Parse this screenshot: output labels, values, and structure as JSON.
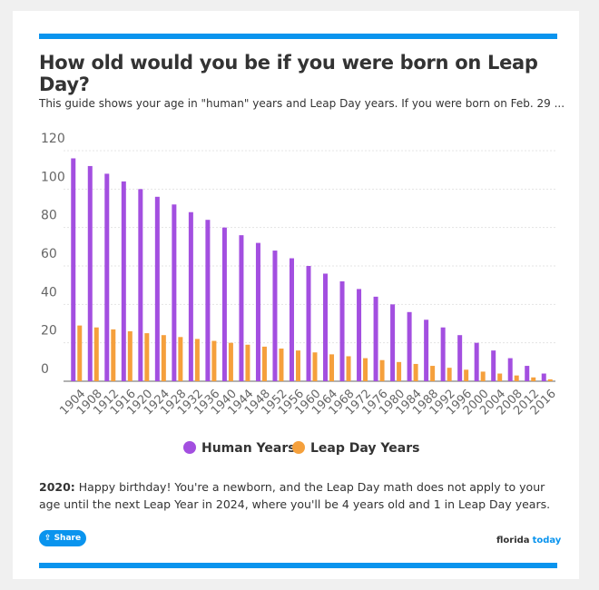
{
  "header": {
    "title": "How old would you be if you were born on Leap Day?",
    "subtitle": "This guide shows your age in \"human\" years and Leap Day years. If you were born on Feb. 29 ..."
  },
  "chart_data": {
    "type": "bar",
    "categories": [
      "1904",
      "1908",
      "1912",
      "1916",
      "1920",
      "1924",
      "1928",
      "1932",
      "1936",
      "1940",
      "1944",
      "1948",
      "1952",
      "1956",
      "1960",
      "1964",
      "1968",
      "1972",
      "1976",
      "1980",
      "1984",
      "1988",
      "1992",
      "1996",
      "2000",
      "2004",
      "2008",
      "2012",
      "2016"
    ],
    "series": [
      {
        "name": "Human Years",
        "color": "#a34fe0",
        "values": [
          116,
          112,
          108,
          104,
          100,
          96,
          92,
          88,
          84,
          80,
          76,
          72,
          68,
          64,
          60,
          56,
          52,
          48,
          44,
          40,
          36,
          32,
          28,
          24,
          20,
          16,
          12,
          8,
          4
        ]
      },
      {
        "name": "Leap Day Years",
        "color": "#f5a03c",
        "values": [
          29,
          28,
          27,
          26,
          25,
          24,
          23,
          22,
          21,
          20,
          19,
          18,
          17,
          16,
          15,
          14,
          13,
          12,
          11,
          10,
          9,
          8,
          7,
          6,
          5,
          4,
          3,
          2,
          1
        ]
      }
    ],
    "ylim": [
      0,
      120
    ],
    "yticks": [
      0,
      20,
      40,
      60,
      80,
      100,
      120
    ],
    "grid": true,
    "legend": "bottom"
  },
  "note": {
    "label": "2020:",
    "text": "Happy birthday! You're a newborn, and the Leap Day math does not apply to your age until the next Leap Year in 2024, where you'll be 4 years old and 1 in Leap Day years."
  },
  "footer": {
    "share": "Share",
    "brand": [
      "florida",
      "today"
    ]
  }
}
